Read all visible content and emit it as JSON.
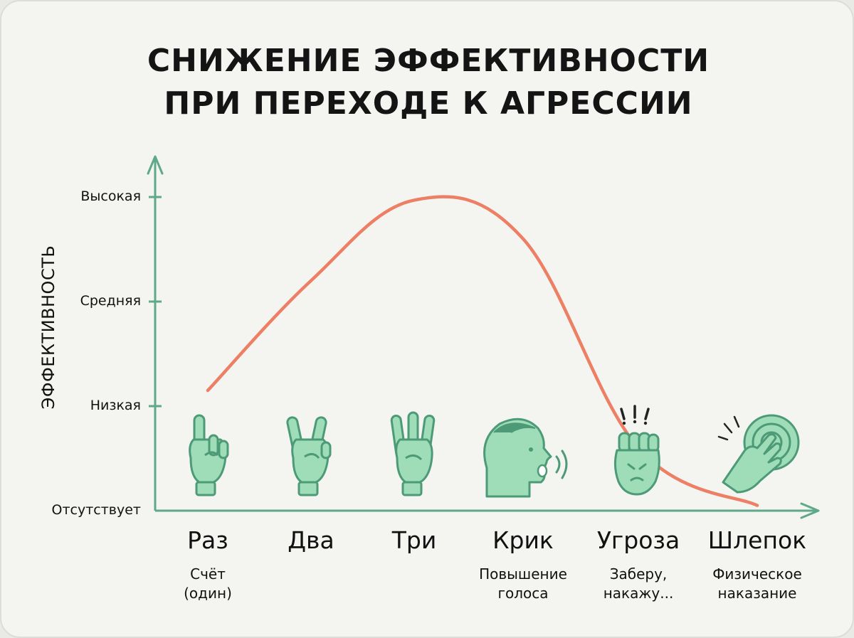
{
  "title_line1": "СНИЖЕНИЕ ЭФФЕКТИВНОСТИ",
  "title_line2": "ПРИ ПЕРЕХОДЕ К АГРЕССИИ",
  "colors": {
    "curve": "#ec7f64",
    "axis": "#5fa88a",
    "icon_fill": "#9fdcb8",
    "icon_stroke": "#4d9a76"
  },
  "chart_data": {
    "type": "line",
    "title": "СНИЖЕНИЕ ЭФФЕКТИВНОСТИ ПРИ ПЕРЕХОДЕ К АГРЕССИИ",
    "ylabel": "ЭФФЕКТИВНОСТЬ",
    "xlabel": "",
    "y_ticks": [
      "Отсутствует",
      "Низкая",
      "Средняя",
      "Высокая"
    ],
    "ylim": [
      0,
      3
    ],
    "categories": [
      {
        "label": "Раз",
        "sub": "Счёт\n(один)",
        "icon": "pointing-finger-icon"
      },
      {
        "label": "Два",
        "sub": "",
        "icon": "two-fingers-icon"
      },
      {
        "label": "Три",
        "sub": "",
        "icon": "three-fingers-icon"
      },
      {
        "label": "Крик",
        "sub": "Повышение\nголоса",
        "icon": "shouting-head-icon"
      },
      {
        "label": "Угроза",
        "sub": "Заберу,\nнакажу...",
        "icon": "angry-fist-icon"
      },
      {
        "label": "Шлепок",
        "sub": "Физическое\nнаказание",
        "icon": "slapping-hand-icon"
      }
    ],
    "series": [
      {
        "values": [
          1.15,
          2.2,
          2.97,
          2.6,
          0.6,
          0.05
        ]
      }
    ],
    "grid": false
  }
}
